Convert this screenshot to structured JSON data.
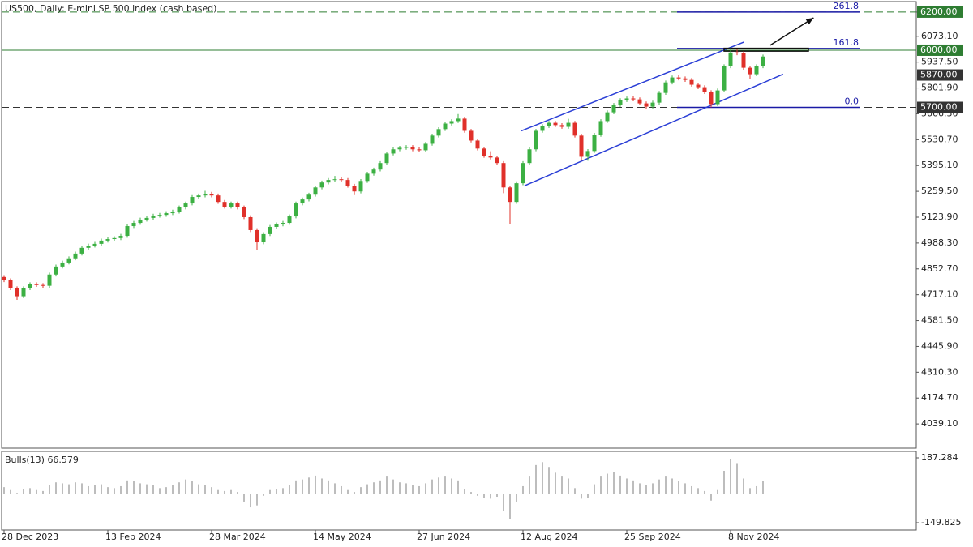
{
  "chart_data": {
    "type": "candlestick",
    "title": "US500, Daily:  E-mini SP 500 index (cash based)",
    "categories": [
      "28 Dec 2023",
      null,
      null,
      null,
      null,
      null,
      null,
      null,
      null,
      null,
      null,
      null,
      null,
      null,
      null,
      null,
      "13 Feb 2024",
      null,
      null,
      null,
      null,
      null,
      null,
      null,
      null,
      null,
      null,
      null,
      null,
      null,
      null,
      null,
      "28 Mar 2024",
      null,
      null,
      null,
      null,
      null,
      null,
      null,
      null,
      null,
      null,
      null,
      null,
      null,
      null,
      null,
      "14 May 2024",
      null,
      null,
      null,
      null,
      null,
      null,
      null,
      null,
      null,
      null,
      null,
      null,
      null,
      null,
      null,
      "27 Jun 2024",
      null,
      null,
      null,
      null,
      null,
      null,
      null,
      null,
      null,
      null,
      null,
      null,
      null,
      null,
      null,
      "12 Aug 2024",
      null,
      null,
      null,
      null,
      null,
      null,
      null,
      null,
      null,
      null,
      null,
      null,
      null,
      null,
      null,
      "25 Sep 2024",
      null,
      null,
      null,
      null,
      null,
      null,
      null,
      null,
      null,
      null,
      null,
      null,
      null,
      null,
      null,
      "8 Nov 2024",
      null,
      null,
      null,
      null,
      null
    ],
    "ohlc": [
      [
        4810,
        4820,
        4783,
        4793
      ],
      [
        4793,
        4803,
        4741,
        4751
      ],
      [
        4751,
        4761,
        4690,
        4709
      ],
      [
        4709,
        4761,
        4699,
        4751
      ],
      [
        4751,
        4782,
        4741,
        4772
      ],
      [
        4772,
        4782,
        4758,
        4768
      ],
      [
        4768,
        4778,
        4754,
        4764
      ],
      [
        4764,
        4833,
        4754,
        4823
      ],
      [
        4823,
        4875,
        4813,
        4865
      ],
      [
        4865,
        4896,
        4855,
        4886
      ],
      [
        4886,
        4918,
        4876,
        4908
      ],
      [
        4908,
        4943,
        4898,
        4933
      ],
      [
        4933,
        4973,
        4923,
        4963
      ],
      [
        4963,
        4985,
        4953,
        4975
      ],
      [
        4975,
        4994,
        4965,
        4984
      ],
      [
        4984,
        5011,
        4974,
        5001
      ],
      [
        5001,
        5019,
        4991,
        5009
      ],
      [
        5009,
        5024,
        4999,
        5014
      ],
      [
        5014,
        5036,
        5004,
        5026
      ],
      [
        5026,
        5087,
        5016,
        5077
      ],
      [
        5077,
        5104,
        5067,
        5094
      ],
      [
        5094,
        5121,
        5084,
        5111
      ],
      [
        5111,
        5130,
        5101,
        5120
      ],
      [
        5120,
        5142,
        5110,
        5132
      ],
      [
        5132,
        5146,
        5122,
        5136
      ],
      [
        5136,
        5155,
        5126,
        5145
      ],
      [
        5145,
        5163,
        5135,
        5153
      ],
      [
        5153,
        5185,
        5143,
        5175
      ],
      [
        5175,
        5206,
        5165,
        5196
      ],
      [
        5196,
        5240,
        5186,
        5230
      ],
      [
        5230,
        5248,
        5220,
        5238
      ],
      [
        5238,
        5262,
        5228,
        5247
      ],
      [
        5247,
        5257,
        5228,
        5238
      ],
      [
        5238,
        5248,
        5194,
        5204
      ],
      [
        5204,
        5214,
        5169,
        5179
      ],
      [
        5179,
        5206,
        5169,
        5196
      ],
      [
        5196,
        5206,
        5165,
        5175
      ],
      [
        5175,
        5185,
        5114,
        5124
      ],
      [
        5124,
        5134,
        5046,
        5056
      ],
      [
        5056,
        5066,
        4950,
        4992
      ],
      [
        4992,
        5045,
        4982,
        5035
      ],
      [
        5035,
        5083,
        5025,
        5073
      ],
      [
        5073,
        5096,
        5063,
        5086
      ],
      [
        5086,
        5104,
        5076,
        5094
      ],
      [
        5094,
        5138,
        5084,
        5128
      ],
      [
        5128,
        5206,
        5118,
        5196
      ],
      [
        5196,
        5227,
        5186,
        5217
      ],
      [
        5217,
        5252,
        5207,
        5242
      ],
      [
        5242,
        5290,
        5232,
        5280
      ],
      [
        5280,
        5316,
        5270,
        5306
      ],
      [
        5306,
        5329,
        5296,
        5319
      ],
      [
        5319,
        5340,
        5309,
        5323
      ],
      [
        5323,
        5333,
        5309,
        5319
      ],
      [
        5319,
        5329,
        5279,
        5289
      ],
      [
        5289,
        5299,
        5240,
        5259
      ],
      [
        5259,
        5324,
        5249,
        5314
      ],
      [
        5314,
        5362,
        5304,
        5352
      ],
      [
        5352,
        5384,
        5342,
        5374
      ],
      [
        5374,
        5418,
        5364,
        5408
      ],
      [
        5408,
        5468,
        5398,
        5458
      ],
      [
        5458,
        5490,
        5448,
        5480
      ],
      [
        5480,
        5498,
        5470,
        5488
      ],
      [
        5488,
        5502,
        5478,
        5492
      ],
      [
        5492,
        5502,
        5470,
        5480
      ],
      [
        5480,
        5490,
        5465,
        5475
      ],
      [
        5475,
        5519,
        5465,
        5509
      ],
      [
        5509,
        5562,
        5499,
        5552
      ],
      [
        5552,
        5596,
        5542,
        5586
      ],
      [
        5586,
        5625,
        5576,
        5615
      ],
      [
        5615,
        5638,
        5605,
        5628
      ],
      [
        5628,
        5665,
        5618,
        5641
      ],
      [
        5641,
        5651,
        5567,
        5577
      ],
      [
        5577,
        5587,
        5516,
        5526
      ],
      [
        5526,
        5536,
        5474,
        5484
      ],
      [
        5484,
        5494,
        5436,
        5446
      ],
      [
        5446,
        5470,
        5427,
        5437
      ],
      [
        5437,
        5447,
        5398,
        5408
      ],
      [
        5408,
        5418,
        5250,
        5280
      ],
      [
        5280,
        5290,
        5090,
        5204
      ],
      [
        5204,
        5312,
        5194,
        5302
      ],
      [
        5302,
        5418,
        5292,
        5408
      ],
      [
        5408,
        5490,
        5398,
        5480
      ],
      [
        5480,
        5587,
        5470,
        5577
      ],
      [
        5577,
        5612,
        5567,
        5602
      ],
      [
        5602,
        5629,
        5592,
        5619
      ],
      [
        5619,
        5629,
        5597,
        5607
      ],
      [
        5607,
        5617,
        5588,
        5598
      ],
      [
        5598,
        5640,
        5588,
        5619
      ],
      [
        5619,
        5629,
        5542,
        5552
      ],
      [
        5552,
        5562,
        5420,
        5441
      ],
      [
        5441,
        5481,
        5420,
        5471
      ],
      [
        5471,
        5566,
        5461,
        5556
      ],
      [
        5556,
        5638,
        5546,
        5628
      ],
      [
        5628,
        5684,
        5618,
        5674
      ],
      [
        5674,
        5723,
        5664,
        5713
      ],
      [
        5713,
        5748,
        5703,
        5738
      ],
      [
        5738,
        5757,
        5728,
        5747
      ],
      [
        5747,
        5760,
        5732,
        5742
      ],
      [
        5742,
        5752,
        5711,
        5721
      ],
      [
        5721,
        5731,
        5690,
        5704
      ],
      [
        5704,
        5735,
        5694,
        5725
      ],
      [
        5725,
        5786,
        5715,
        5776
      ],
      [
        5776,
        5841,
        5766,
        5831
      ],
      [
        5831,
        5867,
        5821,
        5857
      ],
      [
        5857,
        5870,
        5842,
        5852
      ],
      [
        5852,
        5862,
        5834,
        5844
      ],
      [
        5844,
        5854,
        5809,
        5819
      ],
      [
        5819,
        5829,
        5796,
        5806
      ],
      [
        5806,
        5816,
        5770,
        5780
      ],
      [
        5780,
        5790,
        5700,
        5717
      ],
      [
        5717,
        5799,
        5707,
        5789
      ],
      [
        5789,
        5926,
        5779,
        5916
      ],
      [
        5916,
        6010,
        5906,
        5988
      ],
      [
        5988,
        6005,
        5974,
        5984
      ],
      [
        5984,
        5994,
        5898,
        5908
      ],
      [
        5908,
        5918,
        5850,
        5874
      ],
      [
        5874,
        5926,
        5864,
        5916
      ],
      [
        5916,
        5977,
        5906,
        5967
      ]
    ],
    "up_color": "#3cb043",
    "down_color": "#e0302a",
    "ylim": [
      3912,
      6255
    ],
    "yticks": [
      {
        "value": 6200,
        "label": "6200.00"
      },
      {
        "value": 6073.1,
        "label": "6073.10"
      },
      {
        "value": 5937.5,
        "label": "5937.50"
      },
      {
        "value": 5801.9,
        "label": "5801.90"
      },
      {
        "value": 5666.3,
        "label": "5666.30"
      },
      {
        "value": 5530.7,
        "label": "5530.70"
      },
      {
        "value": 5395.1,
        "label": "5395.10"
      },
      {
        "value": 5259.5,
        "label": "5259.50"
      },
      {
        "value": 5123.9,
        "label": "5123.90"
      },
      {
        "value": 4988.3,
        "label": "4988.30"
      },
      {
        "value": 4852.7,
        "label": "4852.70"
      },
      {
        "value": 4717.1,
        "label": "4717.10"
      },
      {
        "value": 4581.5,
        "label": "4581.50"
      },
      {
        "value": 4445.9,
        "label": "4445.90"
      },
      {
        "value": 4310.3,
        "label": "4310.30"
      },
      {
        "value": 4174.7,
        "label": "4174.70"
      },
      {
        "value": 4039.1,
        "label": "4039.10"
      }
    ],
    "levels": [
      {
        "price": {
          "value": 6200,
          "label": "6200.00"
        },
        "color": "#2e7d32",
        "style": "dashed"
      },
      {
        "price": {
          "value": 6000,
          "label": "6000.00"
        },
        "color": "#2e7d32",
        "style": "solid"
      },
      {
        "price": {
          "value": 5870,
          "label": "5870.00"
        },
        "color": "#333333",
        "style": "dashed"
      },
      {
        "price": {
          "value": 5700,
          "label": "5700.00"
        },
        "color": "#333333",
        "style": "dashed"
      }
    ],
    "fibonacci": {
      "ratios": [
        261.8,
        161.8,
        {
          "value": 0,
          "label": "0.0"
        }
      ],
      "prices": [
        6200,
        6009,
        5700
      ],
      "x": [
        103.75,
        132
      ],
      "color": "#1a1aa6"
    },
    "channel": {
      "color": "#2b3fd6",
      "upper": {
        "x": [
          79.75,
          114.1
        ],
        "y": [
          5577,
          6043
        ]
      },
      "lower": {
        "x": [
          80.25,
          120.1
        ],
        "y": [
          5289,
          5874
        ]
      }
    },
    "box": {
      "x": [
        111,
        124
      ],
      "y": [
        5995,
        6010
      ]
    },
    "arrow": {
      "x": [
        118.1,
        124.8
      ],
      "y": [
        6026,
        6170
      ]
    },
    "indicator": {
      "title": "Bulls(13) 66.579",
      "color": "#bdbdbd",
      "values": [
        35,
        20,
        5,
        25,
        30,
        20,
        15,
        45,
        60,
        55,
        50,
        60,
        55,
        40,
        45,
        50,
        35,
        30,
        40,
        70,
        65,
        55,
        50,
        45,
        30,
        35,
        45,
        60,
        75,
        65,
        50,
        45,
        35,
        20,
        15,
        20,
        10,
        -40,
        -70,
        -60,
        -10,
        20,
        25,
        30,
        45,
        70,
        75,
        85,
        95,
        80,
        70,
        55,
        40,
        20,
        10,
        35,
        50,
        60,
        70,
        90,
        75,
        60,
        55,
        45,
        40,
        55,
        75,
        85,
        90,
        80,
        70,
        25,
        10,
        -10,
        -20,
        -25,
        -15,
        -90,
        -130,
        -40,
        40,
        90,
        150,
        165,
        140,
        110,
        90,
        80,
        30,
        -25,
        -20,
        50,
        90,
        105,
        115,
        95,
        80,
        70,
        55,
        45,
        55,
        75,
        90,
        80,
        65,
        55,
        40,
        30,
        15,
        -35,
        20,
        120,
        180,
        160,
        80,
        30,
        40,
        66.579
      ],
      "ylim": [
        -183.5,
        216.8
      ],
      "yticks": [
        187.284,
        -149.825
      ]
    }
  }
}
